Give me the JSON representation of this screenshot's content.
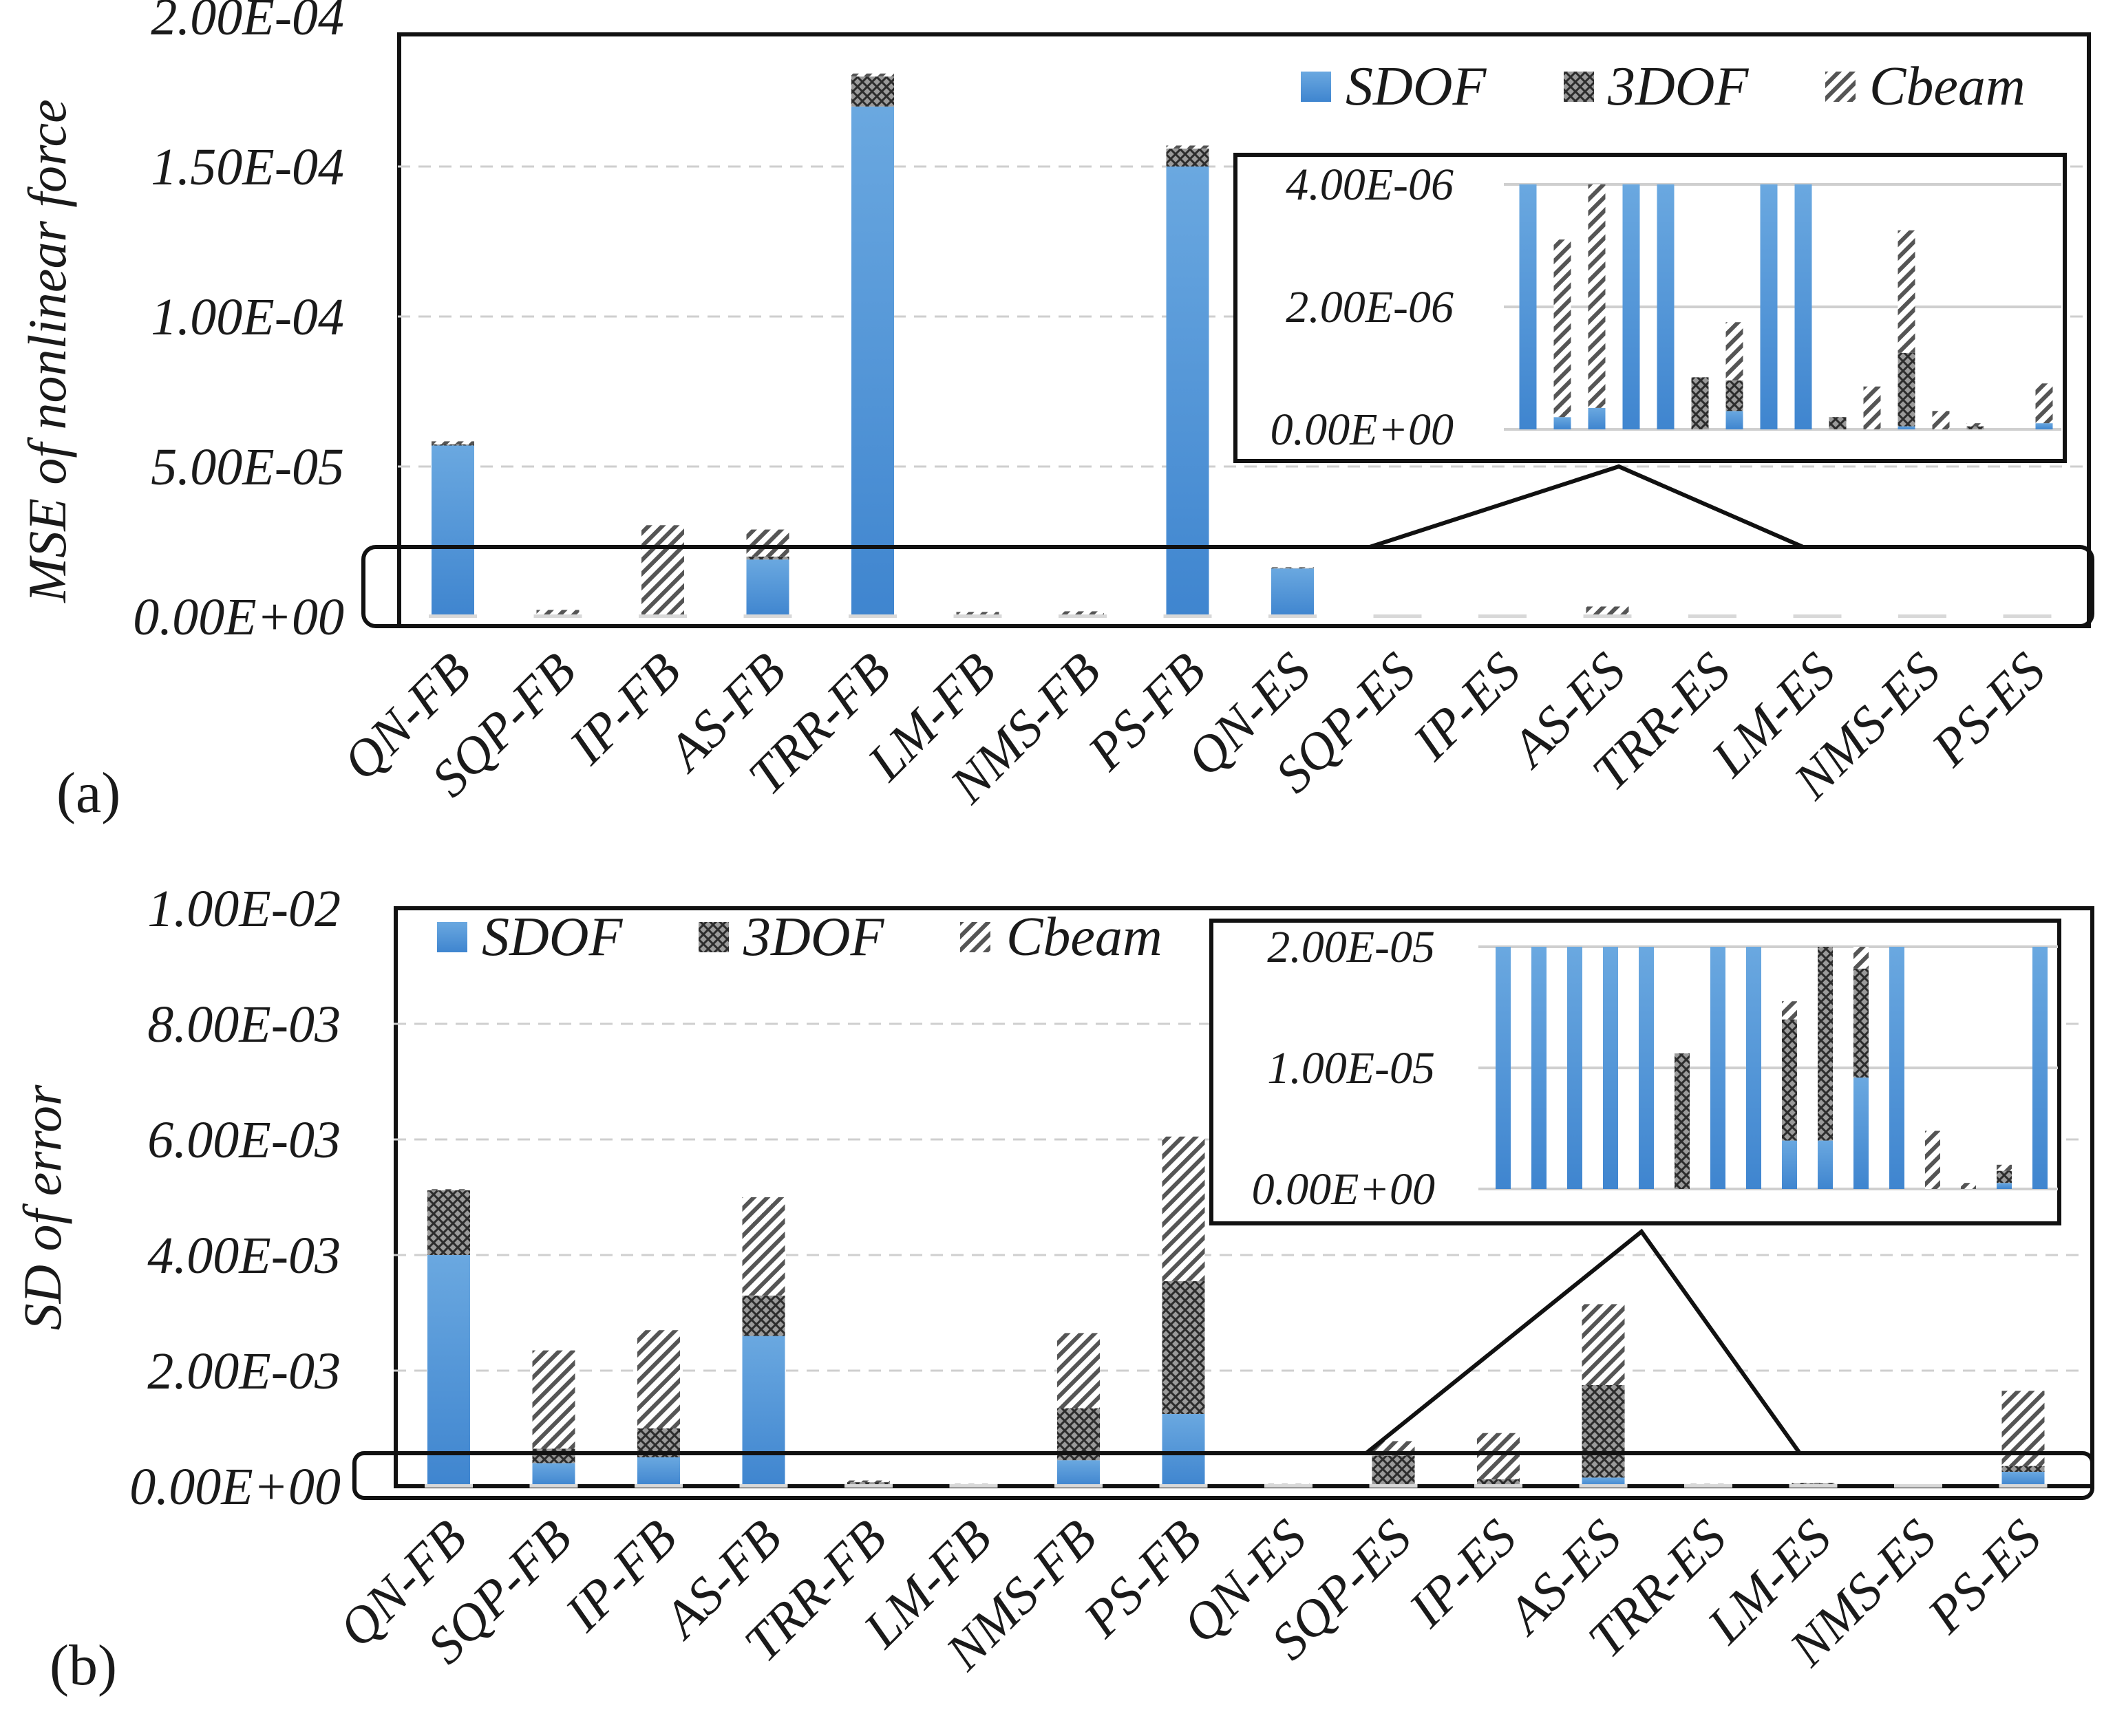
{
  "colors": {
    "sdof": "#4a8fd4",
    "dof3": "#4f4f4f",
    "cbeam": "#6b6b6b",
    "frame": "#111111",
    "grid": "#cfcfcf"
  },
  "legend": {
    "sdof": "SDOF",
    "dof3": "3DOF",
    "cbeam": "Cbeam"
  },
  "chart_data": [
    {
      "panel": "(a)",
      "type": "bar",
      "stacked": true,
      "ylabel": "MSE of nonlinear force",
      "ylim": [
        0,
        0.0002
      ],
      "yticks": [
        "0.00E+00",
        "5.00E-05",
        "1.00E-04",
        "1.50E-04",
        "2.00E-04"
      ],
      "categories": [
        "QN-FB",
        "SQP-FB",
        "IP-FB",
        "AS-FB",
        "TRR-FB",
        "LM-FB",
        "NMS-FB",
        "PS-FB",
        "QN-ES",
        "SQP-ES",
        "IP-ES",
        "AS-ES",
        "TRR-ES",
        "LM-ES",
        "NMS-ES",
        "PS-ES"
      ],
      "series": [
        {
          "name": "SDOF",
          "values": [
            5.7e-05,
            2e-07,
            3e-07,
            1.9e-05,
            0.00017,
            2e-07,
            3e-07,
            0.00015,
            1.6e-05,
            2e-07,
            1e-07,
            2e-07,
            1e-07,
            1e-07,
            1e-07,
            2e-07
          ]
        },
        {
          "name": "3DOF",
          "values": [
            4e-07,
            2e-07,
            1e-07,
            1e-06,
            1e-05,
            1e-07,
            1e-07,
            6e-06,
            1e-07,
            1e-07,
            1e-07,
            1e-07,
            1e-07,
            1e-07,
            1e-07,
            1e-07
          ]
        },
        {
          "name": "Cbeam",
          "values": [
            1e-06,
            1.8e-06,
            3e-05,
            9e-06,
            1e-06,
            1.2e-06,
            1.3e-06,
            1e-06,
            3e-07,
            1e-07,
            1e-07,
            3e-06,
            1e-07,
            1e-07,
            1e-07,
            1e-07
          ]
        }
      ],
      "inset": {
        "ylim": [
          0,
          4e-06
        ],
        "yticks": [
          "0.00E+00",
          "2.00E-06",
          "4.00E-06"
        ],
        "bars": [
          {
            "sdof": 4e-06,
            "dof3": 0,
            "cbeam": 0
          },
          {
            "sdof": 2e-07,
            "dof3": 0,
            "cbeam": 2.9e-06
          },
          {
            "sdof": 3.5e-07,
            "dof3": 0,
            "cbeam": 3.65e-06
          },
          {
            "sdof": 4e-06,
            "dof3": 0,
            "cbeam": 0
          },
          {
            "sdof": 4e-06,
            "dof3": 0,
            "cbeam": 0
          },
          {
            "sdof": 0,
            "dof3": 8.5e-07,
            "cbeam": 0
          },
          {
            "sdof": 3e-07,
            "dof3": 5e-07,
            "cbeam": 9.5e-07
          },
          {
            "sdof": 4e-06,
            "dof3": 0,
            "cbeam": 0
          },
          {
            "sdof": 4e-06,
            "dof3": 0,
            "cbeam": 0
          },
          {
            "sdof": 0,
            "dof3": 2e-07,
            "cbeam": 0
          },
          {
            "sdof": 0,
            "dof3": 0,
            "cbeam": 7e-07
          },
          {
            "sdof": 5e-08,
            "dof3": 1.2e-06,
            "cbeam": 2e-06
          },
          {
            "sdof": 0,
            "dof3": 0,
            "cbeam": 3e-07
          },
          {
            "sdof": 0,
            "dof3": 5e-08,
            "cbeam": 5e-08
          },
          {
            "sdof": 0,
            "dof3": 0,
            "cbeam": 0
          },
          {
            "sdof": 1e-07,
            "dof3": 0,
            "cbeam": 6.5e-07
          }
        ]
      }
    },
    {
      "panel": "(b)",
      "type": "bar",
      "stacked": true,
      "ylabel": "SD of error",
      "ylim": [
        0,
        0.01
      ],
      "yticks": [
        "0.00E+00",
        "2.00E-03",
        "4.00E-03",
        "6.00E-03",
        "8.00E-03",
        "1.00E-02"
      ],
      "categories": [
        "QN-FB",
        "SQP-FB",
        "IP-FB",
        "AS-FB",
        "TRR-FB",
        "LM-FB",
        "NMS-FB",
        "PS-FB",
        "QN-ES",
        "SQP-ES",
        "IP-ES",
        "AS-ES",
        "TRR-ES",
        "LM-ES",
        "NMS-ES",
        "PS-ES"
      ],
      "series": [
        {
          "name": "SDOF",
          "values": [
            0.004,
            0.0004,
            0.0005,
            0.0026,
            3e-05,
            2e-05,
            0.00045,
            0.00125,
            2e-05,
            3e-05,
            2e-05,
            0.00015,
            2e-05,
            3e-05,
            1e-05,
            0.00025
          ]
        },
        {
          "name": "3DOF",
          "values": [
            0.00112,
            0.00025,
            0.0005,
            0.0007,
            4e-05,
            1e-05,
            0.0009,
            0.0023,
            1e-05,
            0.0005,
            0.0001,
            0.0016,
            1e-05,
            2e-05,
            1e-05,
            0.0001
          ]
        },
        {
          "name": "Cbeam",
          "values": [
            2e-05,
            0.0017,
            0.0017,
            0.0017,
            3e-05,
            1e-05,
            0.0013,
            0.0025,
            1e-05,
            0.00025,
            0.0008,
            0.0014,
            1e-05,
            1e-05,
            1e-05,
            0.0013
          ]
        }
      ],
      "inset": {
        "ylim": [
          0,
          2e-05
        ],
        "yticks": [
          "0.00E+00",
          "1.00E-05",
          "2.00E-05"
        ],
        "bars": [
          {
            "sdof": 2e-05,
            "dof3": 0,
            "cbeam": 0
          },
          {
            "sdof": 2e-05,
            "dof3": 0,
            "cbeam": 0
          },
          {
            "sdof": 2e-05,
            "dof3": 0,
            "cbeam": 0
          },
          {
            "sdof": 2e-05,
            "dof3": 0,
            "cbeam": 0
          },
          {
            "sdof": 2e-05,
            "dof3": 0,
            "cbeam": 0
          },
          {
            "sdof": 0,
            "dof3": 1.12e-05,
            "cbeam": 0
          },
          {
            "sdof": 2e-05,
            "dof3": 0,
            "cbeam": 0
          },
          {
            "sdof": 2e-05,
            "dof3": 0,
            "cbeam": 0
          },
          {
            "sdof": 4e-06,
            "dof3": 1e-05,
            "cbeam": 1.5e-06
          },
          {
            "sdof": 4e-06,
            "dof3": 1.6e-05,
            "cbeam": 0
          },
          {
            "sdof": 9.2e-06,
            "dof3": 9e-06,
            "cbeam": 1.8e-06
          },
          {
            "sdof": 2e-05,
            "dof3": 0,
            "cbeam": 0
          },
          {
            "sdof": 0,
            "dof3": 0,
            "cbeam": 4.8e-06
          },
          {
            "sdof": 0,
            "dof3": 0,
            "cbeam": 5e-07
          },
          {
            "sdof": 5e-07,
            "dof3": 1e-06,
            "cbeam": 5e-07
          },
          {
            "sdof": 2e-05,
            "dof3": 0,
            "cbeam": 0
          }
        ]
      }
    }
  ]
}
